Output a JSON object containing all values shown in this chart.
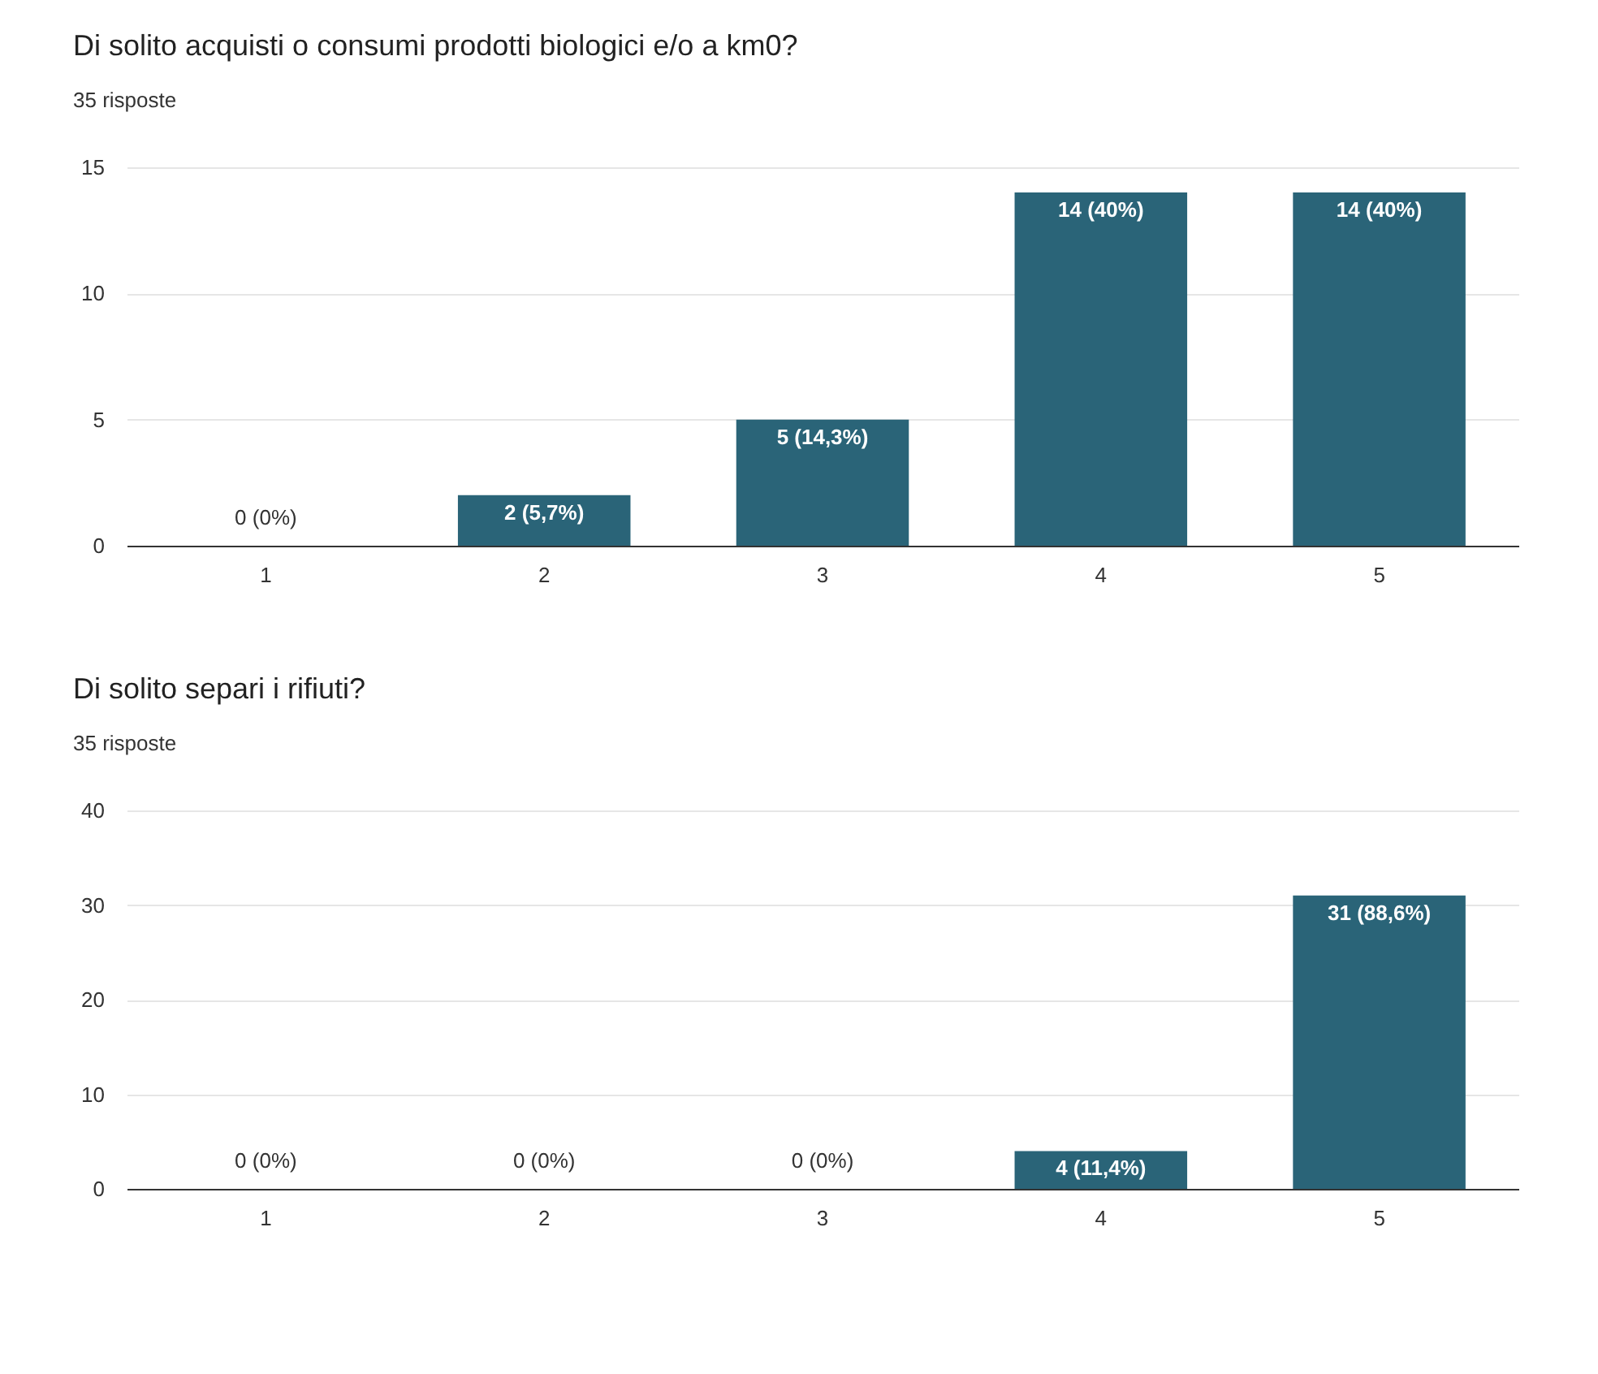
{
  "chart_data": [
    {
      "type": "bar",
      "title": "Di solito acquisti o consumi prodotti biologici e/o a km0?",
      "subtitle": "35 risposte",
      "categories": [
        "1",
        "2",
        "3",
        "4",
        "5"
      ],
      "values": [
        0,
        2,
        5,
        14,
        14
      ],
      "value_labels": [
        "0 (0%)",
        "2 (5,7%)",
        "5 (14,3%)",
        "14 (40%)",
        "14 (40%)"
      ],
      "color": "#2a6478",
      "ylim": [
        0,
        15
      ],
      "yticks": [
        0,
        5,
        10,
        15
      ],
      "grid": "y"
    },
    {
      "type": "bar",
      "title": "Di solito separi i rifiuti?",
      "subtitle": "35 risposte",
      "categories": [
        "1",
        "2",
        "3",
        "4",
        "5"
      ],
      "values": [
        0,
        0,
        0,
        4,
        31
      ],
      "value_labels": [
        "0 (0%)",
        "0 (0%)",
        "0 (0%)",
        "4 (11,4%)",
        "31 (88,6%)"
      ],
      "color": "#2a6478",
      "ylim": [
        0,
        40
      ],
      "yticks": [
        0,
        10,
        20,
        30,
        40
      ],
      "grid": "y"
    }
  ]
}
